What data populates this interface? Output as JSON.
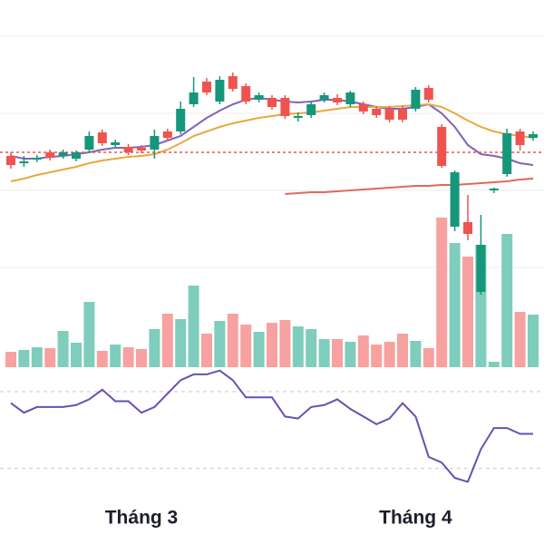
{
  "chart_data": {
    "type": "candlestick",
    "categories": [
      null,
      null,
      null,
      null,
      null,
      null,
      null,
      null,
      null,
      null,
      "Tháng 3",
      null,
      null,
      null,
      null,
      null,
      null,
      null,
      null,
      null,
      null,
      null,
      null,
      null,
      null,
      null,
      null,
      null,
      null,
      null,
      null,
      "Tháng 4",
      null,
      null,
      null,
      null,
      null,
      null,
      null,
      null,
      null
    ],
    "open": [
      228,
      220,
      224,
      232,
      228,
      225,
      235,
      254,
      240,
      238,
      237,
      235,
      255,
      255,
      285,
      310,
      288,
      316,
      305,
      290,
      292,
      292,
      270,
      273,
      290,
      292,
      285,
      285,
      280,
      280,
      280,
      280,
      303,
      260,
      150,
      155,
      78,
      190,
      208,
      255,
      248
    ],
    "high": [
      232,
      228,
      229,
      235,
      235,
      234,
      255,
      257,
      246,
      241,
      240,
      257,
      258,
      288,
      315,
      314,
      316,
      320,
      308,
      298,
      295,
      295,
      276,
      288,
      298,
      296,
      300,
      288,
      283,
      283,
      283,
      304,
      306,
      263,
      212,
      185,
      163,
      193,
      258,
      258,
      255
    ],
    "low": [
      214,
      216,
      221,
      223,
      225,
      222,
      232,
      239,
      237,
      229,
      231,
      225,
      245,
      252,
      282,
      295,
      285,
      299,
      285,
      287,
      279,
      269,
      266,
      270,
      287,
      284,
      282,
      274,
      270,
      265,
      265,
      277,
      287,
      215,
      145,
      135,
      75,
      187,
      205,
      234,
      245
    ],
    "close": [
      218,
      222,
      226,
      226,
      232,
      232,
      250,
      242,
      243,
      232,
      234,
      250,
      248,
      280,
      298,
      298,
      312,
      302,
      288,
      295,
      282,
      272,
      272,
      285,
      295,
      287,
      298,
      277,
      273,
      268,
      268,
      301,
      290,
      217,
      210,
      142,
      130,
      192,
      253,
      240,
      252
    ],
    "up_color": "#16967a",
    "down_color": "#ef5350",
    "volume": [
      17,
      19,
      22,
      21,
      40,
      27,
      72,
      18,
      25,
      22,
      20,
      42,
      59,
      53,
      90,
      37,
      51,
      59,
      47,
      39,
      49,
      52,
      45,
      42,
      31,
      31,
      28,
      35,
      25,
      28,
      37,
      29,
      21,
      165,
      137,
      122,
      135,
      6,
      147,
      61,
      58
    ],
    "volume_up_color": "#7ecdbd",
    "volume_down_color": "#f7a1a0",
    "volume_ylim": [
      0,
      400
    ],
    "ylim": [
      0,
      400
    ],
    "grid_lines": [
      360,
      275,
      190,
      105
    ],
    "price_line": 232,
    "price_line_color": "#ef5350",
    "series": [
      {
        "color": "#8064b8",
        "values": [
          228,
          225,
          225,
          227,
          228,
          230,
          232,
          235,
          237,
          237,
          238,
          240,
          245,
          250,
          260,
          270,
          278,
          285,
          290,
          292,
          290,
          288,
          287,
          288,
          290,
          290,
          288,
          285,
          282,
          280,
          280,
          282,
          285,
          275,
          260,
          240,
          230,
          228,
          225,
          220,
          218
        ]
      },
      {
        "color": "#e8a840",
        "values": [
          200,
          203,
          207,
          210,
          213,
          216,
          220,
          223,
          225,
          227,
          228,
          230,
          235,
          242,
          250,
          255,
          260,
          264,
          267,
          270,
          272,
          274,
          275,
          276,
          278,
          280,
          282,
          282,
          282,
          282,
          283,
          284,
          285,
          282,
          275,
          267,
          260,
          255,
          252,
          250,
          248
        ]
      },
      {
        "color": "#e0685e",
        "values": [
          null,
          null,
          null,
          null,
          null,
          null,
          null,
          null,
          null,
          null,
          null,
          null,
          null,
          null,
          null,
          null,
          null,
          null,
          null,
          null,
          null,
          186,
          187,
          188,
          188,
          189,
          190,
          191,
          192,
          193,
          194,
          195,
          195,
          196,
          196,
          197,
          198,
          199,
          200,
          202,
          203
        ]
      }
    ],
    "rsi": [
      64,
      59,
      62,
      62,
      62,
      63,
      66,
      71,
      65,
      65,
      59,
      62,
      69,
      76,
      79,
      79,
      81,
      76,
      67,
      67,
      67,
      57,
      56,
      62,
      63,
      66,
      61,
      57,
      53,
      56,
      64,
      57,
      36,
      33,
      25,
      23,
      40,
      51,
      51,
      48,
      48
    ],
    "rsi_color": "#6a4fb0",
    "rsi_ylim": [
      0,
      100
    ],
    "rsi_lines": [
      30,
      70
    ]
  }
}
